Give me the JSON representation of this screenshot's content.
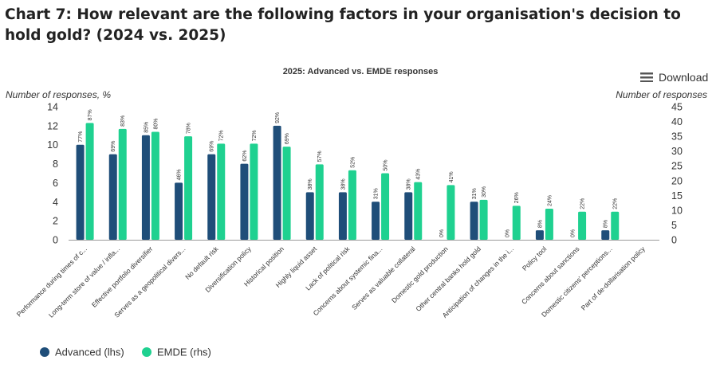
{
  "page": {
    "title": "Chart 7: How relevant are the following factors in your organisation's decision to hold gold? (2024 vs. 2025)",
    "download_label": "Download"
  },
  "chart_data": {
    "type": "bar",
    "title": "2025: Advanced vs. EMDE responses",
    "ylabel_left": "Number of responses, %",
    "ylabel_right": "Number of responses",
    "ylim_left": [
      0,
      14
    ],
    "yticks_left": [
      0,
      2,
      4,
      6,
      8,
      10,
      12,
      14
    ],
    "ylim_right": [
      0,
      45
    ],
    "yticks_right": [
      0,
      5,
      10,
      15,
      20,
      25,
      30,
      35,
      40,
      45
    ],
    "grid": false,
    "legend_position": "bottom-left",
    "categories": [
      "Performance during times of c...",
      "Long-term store of value / infla...",
      "Effective portfolio diversifier",
      "Serves as a geopolitical divers...",
      "No default risk",
      "Diversification policy",
      "Historical position",
      "Highly liquid asset",
      "Lack of political risk",
      "Concerns about systemic fina...",
      "Serves as valuable collateral",
      "Domestic gold production",
      "Other central banks hold gold",
      "Anticipation of changes in the i...",
      "Policy tool",
      "Concerns about sanctions",
      "Domestic citizens' perceptions...",
      "Part of de-dollarisation policy"
    ],
    "series": [
      {
        "name": "Advanced (lhs)",
        "color": "#1f4e79",
        "axis": "left",
        "values": [
          10,
          9,
          11,
          6,
          9,
          8,
          12,
          5,
          5,
          4,
          5,
          0,
          4,
          0,
          1,
          0,
          1,
          null
        ],
        "labels": [
          "77%",
          "69%",
          "85%",
          "46%",
          "69%",
          "62%",
          "92%",
          "38%",
          "38%",
          "31%",
          "38%",
          "0%",
          "31%",
          "0%",
          "8%",
          "0%",
          "8%",
          ""
        ]
      },
      {
        "name": "EMDE (rhs)",
        "color": "#1fd190",
        "axis": "right",
        "values": [
          39.5,
          37.5,
          36.5,
          35,
          32.5,
          32.5,
          31.5,
          25.5,
          23.5,
          22.5,
          19.5,
          18.5,
          13.5,
          11.5,
          10.5,
          9.5,
          9.5,
          null
        ],
        "labels": [
          "87%",
          "83%",
          "80%",
          "78%",
          "72%",
          "72%",
          "69%",
          "57%",
          "52%",
          "50%",
          "43%",
          "41%",
          "30%",
          "26%",
          "24%",
          "22%",
          "22%",
          ""
        ]
      }
    ]
  }
}
